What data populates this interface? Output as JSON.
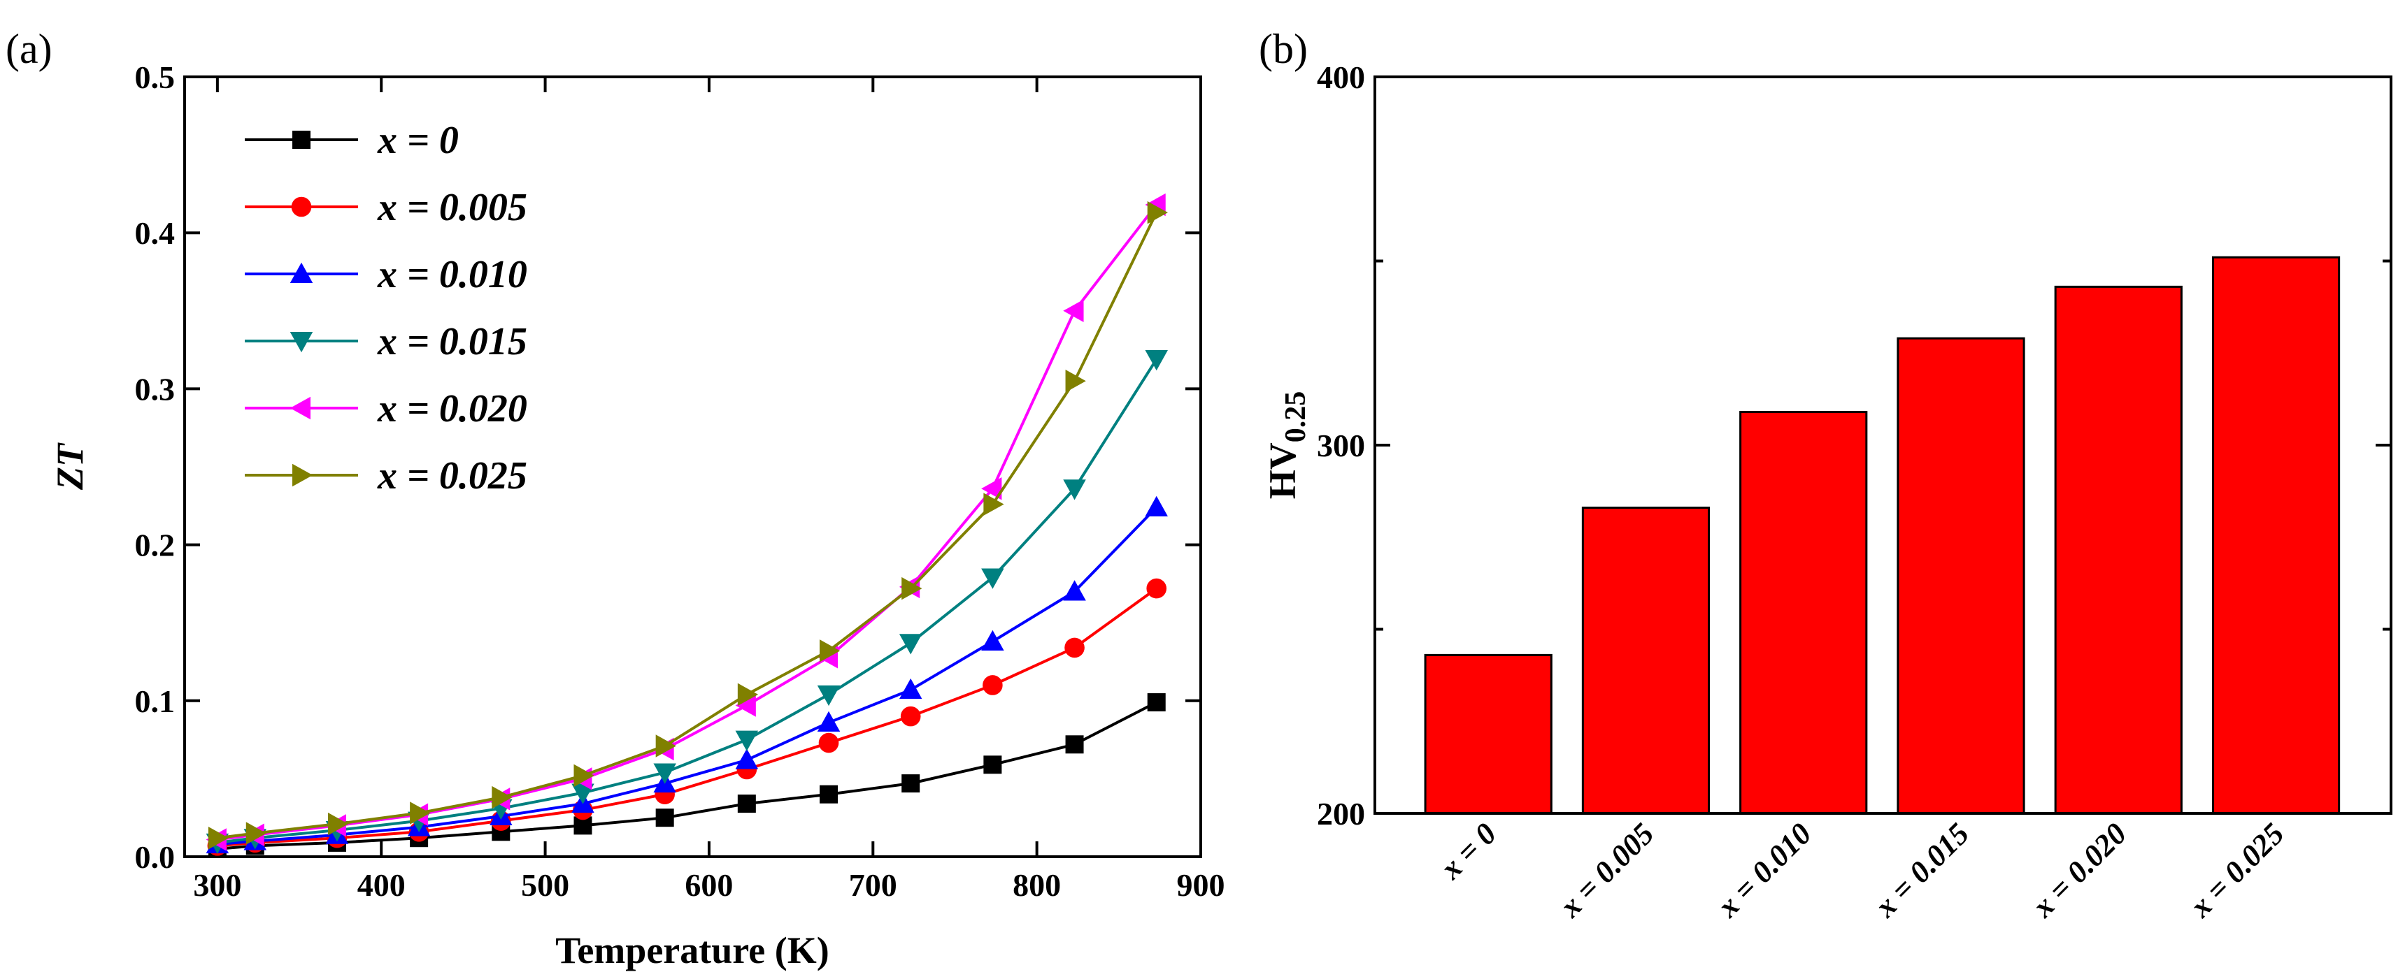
{
  "chart_data": [
    {
      "type": "line",
      "panel_label": "(a)",
      "title": "",
      "xlabel": "Temperature (K)",
      "ylabel": "ZT",
      "xlim": [
        280,
        900
      ],
      "ylim": [
        0,
        0.5
      ],
      "xticks": [
        300,
        400,
        500,
        600,
        700,
        800,
        900
      ],
      "yticks": [
        0.0,
        0.1,
        0.2,
        0.3,
        0.4,
        0.5
      ],
      "xtick_labels": [
        "300",
        "400",
        "500",
        "600",
        "700",
        "800",
        "900"
      ],
      "ytick_labels": [
        "0.0",
        "0.1",
        "0.2",
        "0.3",
        "0.4",
        "0.5"
      ],
      "legend_position": "top-left",
      "x": [
        300,
        323,
        373,
        423,
        473,
        523,
        573,
        623,
        673,
        723,
        773,
        823,
        873
      ],
      "series": [
        {
          "name": "x = 0",
          "color": "#000000",
          "marker": "square",
          "values": [
            0.005,
            0.007,
            0.009,
            0.012,
            0.016,
            0.02,
            0.025,
            0.034,
            0.04,
            0.047,
            0.059,
            0.072,
            0.099
          ]
        },
        {
          "name": "x = 0.005",
          "color": "#ff0000",
          "marker": "circle",
          "values": [
            0.007,
            0.009,
            0.012,
            0.016,
            0.023,
            0.03,
            0.04,
            0.056,
            0.073,
            0.09,
            0.11,
            0.134,
            0.172
          ]
        },
        {
          "name": "x = 0.010",
          "color": "#0000ff",
          "marker": "triangle-up",
          "values": [
            0.008,
            0.01,
            0.014,
            0.019,
            0.026,
            0.034,
            0.047,
            0.062,
            0.086,
            0.107,
            0.138,
            0.17,
            0.224
          ]
        },
        {
          "name": "x = 0.015",
          "color": "#008080",
          "marker": "triangle-down",
          "values": [
            0.009,
            0.012,
            0.017,
            0.023,
            0.031,
            0.041,
            0.054,
            0.075,
            0.104,
            0.137,
            0.179,
            0.236,
            0.319
          ]
        },
        {
          "name": "x = 0.020",
          "color": "#ff00ff",
          "marker": "triangle-left",
          "values": [
            0.011,
            0.014,
            0.02,
            0.027,
            0.037,
            0.05,
            0.069,
            0.097,
            0.128,
            0.173,
            0.236,
            0.35,
            0.418
          ]
        },
        {
          "name": "x = 0.025",
          "color": "#808000",
          "marker": "triangle-right",
          "values": [
            0.012,
            0.015,
            0.021,
            0.028,
            0.038,
            0.052,
            0.071,
            0.104,
            0.132,
            0.172,
            0.226,
            0.305,
            0.413
          ]
        }
      ]
    },
    {
      "type": "bar",
      "panel_label": "(b)",
      "title": "",
      "xlabel": "",
      "ylabel_main": "HV",
      "ylabel_sub": "0.25",
      "ylim": [
        200,
        400
      ],
      "yticks": [
        200,
        300,
        400
      ],
      "ytick_labels": [
        "200",
        "300",
        "400"
      ],
      "categories": [
        "x = 0",
        "x = 0.005",
        "x = 0.010",
        "x = 0.015",
        "x = 0.020",
        "x = 0.025"
      ],
      "values": [
        243,
        283,
        309,
        329,
        343,
        351
      ],
      "bar_color": "#ff0000"
    }
  ]
}
